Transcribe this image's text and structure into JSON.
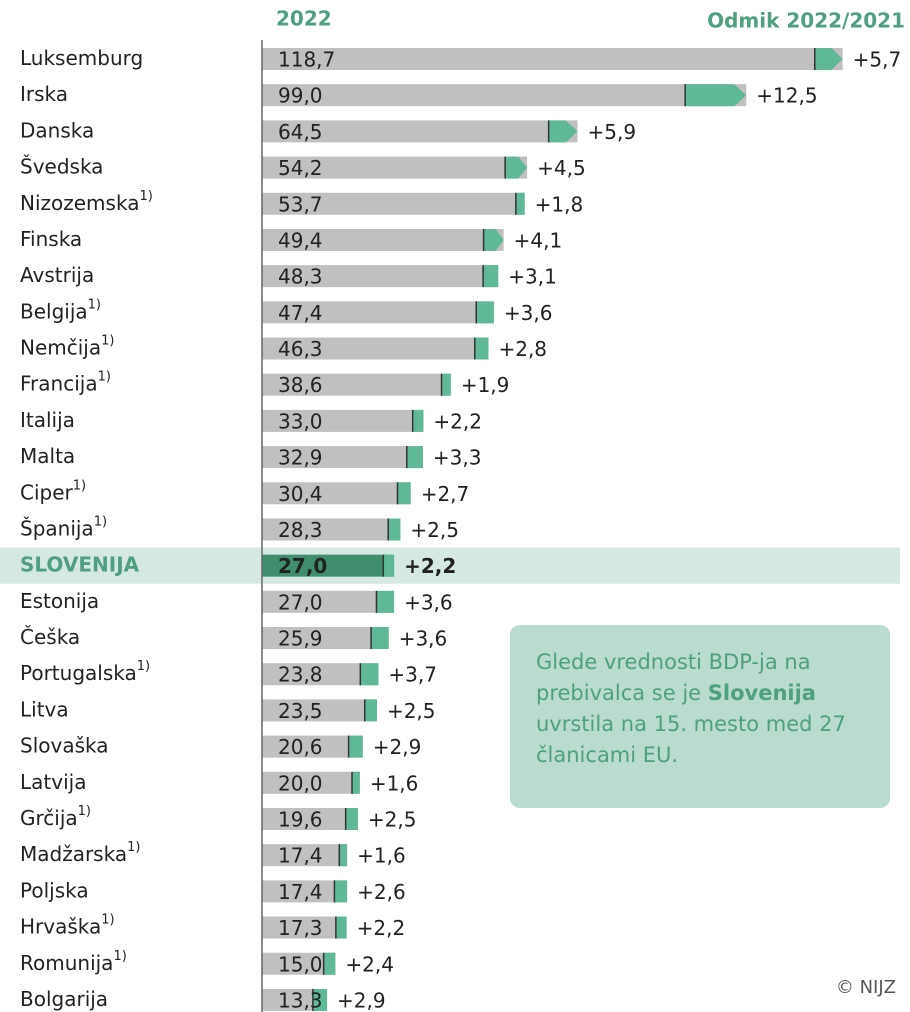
{
  "chart_data": {
    "type": "bar",
    "header_value": "2022",
    "header_change": "Odmik 2022/2021",
    "categories": [
      "Luksemburg",
      "Irska",
      "Danska",
      "Švedska",
      "Nizozemska",
      "Finska",
      "Avstrija",
      "Belgija",
      "Nemčija",
      "Francija",
      "Italija",
      "Malta",
      "Ciper",
      "Španija",
      "SLOVENIJA",
      "Estonija",
      "Češka",
      "Portugalska",
      "Litva",
      "Slovaška",
      "Latvija",
      "Grčija",
      "Madžarska",
      "Poljska",
      "Hrvaška",
      "Romunija",
      "Bolgarija"
    ],
    "notes": [
      null,
      null,
      null,
      null,
      "1)",
      null,
      null,
      "1)",
      "1)",
      "1)",
      null,
      null,
      "1)",
      "1)",
      null,
      null,
      null,
      "1)",
      null,
      null,
      null,
      "1)",
      "1)",
      null,
      "1)",
      "1)",
      null
    ],
    "highlight": "SLOVENIJA",
    "series": [
      {
        "color": "#c0c0c0",
        "values": [
          118.7,
          99.0,
          64.5,
          54.2,
          53.7,
          49.4,
          48.3,
          47.4,
          46.3,
          38.6,
          33.0,
          32.9,
          30.4,
          28.3,
          27.0,
          27.0,
          25.9,
          23.8,
          23.5,
          20.6,
          20.0,
          19.6,
          17.4,
          17.4,
          17.3,
          15.0,
          13.3
        ],
        "value_labels": [
          "118,7",
          "99,0",
          "64,5",
          "54,2",
          "53,7",
          "49,4",
          "48,3",
          "47,4",
          "46,3",
          "38,6",
          "33,0",
          "32,9",
          "30,4",
          "28,3",
          "27,0",
          "27,0",
          "25,9",
          "23,8",
          "23,5",
          "20,6",
          "20,0",
          "19,6",
          "17,4",
          "17,4",
          "17,3",
          "15,0",
          "13,3"
        ]
      },
      {
        "color": "#5fb896",
        "values": [
          5.7,
          12.5,
          5.9,
          4.5,
          1.8,
          4.1,
          3.1,
          3.6,
          2.8,
          1.9,
          2.2,
          3.3,
          2.7,
          2.5,
          2.2,
          3.6,
          3.6,
          3.7,
          2.5,
          2.9,
          1.6,
          2.5,
          1.6,
          2.6,
          2.2,
          2.4,
          2.9
        ],
        "value_labels": [
          "+5,7",
          "+12,5",
          "+5,9",
          "+4,5",
          "+1,8",
          "+4,1",
          "+3,1",
          "+3,6",
          "+2,8",
          "+1,9",
          "+2,2",
          "+3,3",
          "+2,7",
          "+2,5",
          "+2,2",
          "+3,6",
          "+3,6",
          "+3,7",
          "+2,5",
          "+2,9",
          "+1,6",
          "+2,5",
          "+1,6",
          "+2,6",
          "+2,2",
          "+2,4",
          "+2,9"
        ]
      }
    ],
    "xlim": [
      0,
      120
    ],
    "callout": {
      "before": "Glede vrednosti BDP-ja na prebivalca se je ",
      "bold": "Slovenija",
      "after": " uvrstila na 15. mesto med 27 članicami EU."
    },
    "credit": "© NIJZ"
  }
}
